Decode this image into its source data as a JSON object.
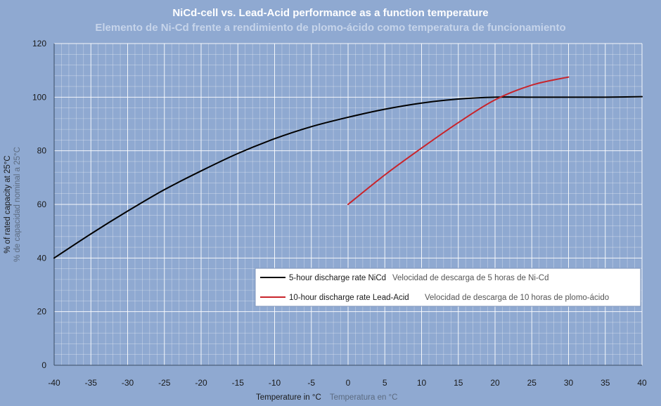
{
  "chart_data": {
    "type": "line",
    "title": "NiCd-cell vs. Lead-Acid performance as a function temperature",
    "subtitle": "Elemento de Ni-Cd frente a rendimiento de plomo-ácido como temperatura de funcionamiento",
    "xlabel": "Temperature in °C",
    "xlabel_alt": "Temperatura en °C",
    "ylabel": "% of rated capacity at 25°C",
    "ylabel_alt": "% de capacidad nominal a 25°C",
    "xlim": [
      -40,
      40
    ],
    "ylim": [
      0,
      120
    ],
    "xticks": [
      -40,
      -35,
      -30,
      -25,
      -20,
      -15,
      -10,
      -5,
      0,
      5,
      10,
      15,
      20,
      25,
      30,
      35,
      40
    ],
    "yticks": [
      0,
      20,
      40,
      60,
      80,
      100,
      120
    ],
    "grid": true,
    "legend_position": "bottom-right",
    "series": [
      {
        "name": "5-hour discharge rate NiCd",
        "name_alt": "Velocidad de descarga de 5 horas de Ni-Cd",
        "color": "#000000",
        "x": [
          -40,
          -35,
          -30,
          -25,
          -20,
          -15,
          -10,
          -5,
          0,
          5,
          10,
          15,
          20,
          25,
          30,
          35,
          40
        ],
        "y": [
          40,
          49,
          57.5,
          65.5,
          72.5,
          79,
          84.5,
          89,
          92.5,
          95.5,
          97.8,
          99.3,
          100,
          100,
          100,
          100,
          100.2
        ]
      },
      {
        "name": "10-hour discharge rate Lead-Acid",
        "name_alt": "Velocidad de descarga de 10 horas de plomo-ácido",
        "color": "#c8242b",
        "x": [
          0,
          5,
          10,
          15,
          20,
          25,
          30
        ],
        "y": [
          60,
          71,
          81,
          90.5,
          99,
          104.5,
          107.5
        ]
      }
    ]
  }
}
